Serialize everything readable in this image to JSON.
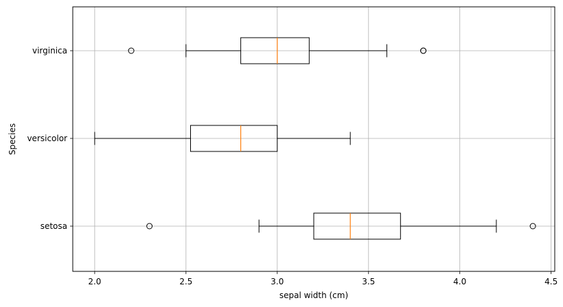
{
  "chart_data": {
    "type": "boxplot",
    "orientation": "horizontal",
    "title": "",
    "xlabel": "sepal width (cm)",
    "ylabel": "Species",
    "xlim": [
      1.88,
      4.52
    ],
    "grid": true,
    "x_ticks": [
      2.0,
      2.5,
      3.0,
      3.5,
      4.0,
      4.5
    ],
    "x_tick_labels": [
      "2.0",
      "2.5",
      "3.0",
      "3.5",
      "4.0",
      "4.5"
    ],
    "categories": [
      "setosa",
      "versicolor",
      "virginica"
    ],
    "boxes": [
      {
        "category": "setosa",
        "whisker_low": 2.9,
        "q1": 3.2,
        "median": 3.4,
        "q3": 3.675,
        "whisker_high": 4.2,
        "outliers": [
          2.3,
          4.4
        ]
      },
      {
        "category": "versicolor",
        "whisker_low": 2.0,
        "q1": 2.525,
        "median": 2.8,
        "q3": 3.0,
        "whisker_high": 3.4,
        "outliers": []
      },
      {
        "category": "virginica",
        "whisker_low": 2.5,
        "q1": 2.8,
        "median": 3.0,
        "q3": 3.175,
        "whisker_high": 3.6,
        "outliers": [
          2.2,
          3.8,
          3.8
        ]
      }
    ],
    "colors": {
      "box": "#000000",
      "median": "#ff7f0e",
      "grid": "#b0b0b0"
    }
  }
}
